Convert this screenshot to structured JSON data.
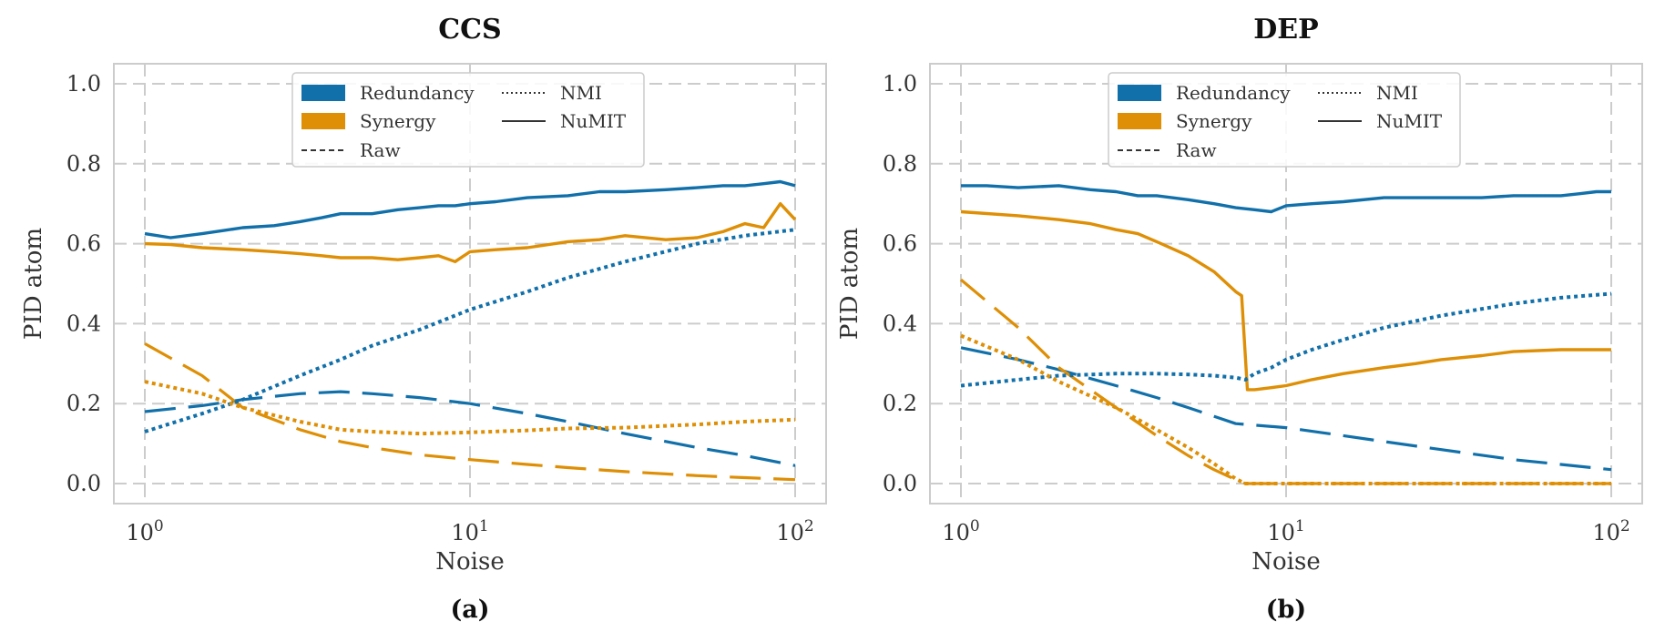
{
  "colors": {
    "redundancy": "#1170aa",
    "synergy": "#de8f05"
  },
  "legend": {
    "redundancy": "Redundancy",
    "synergy": "Synergy",
    "raw": "Raw",
    "nmi": "NMI",
    "numit": "NuMIT"
  },
  "chart_data": [
    {
      "type": "line",
      "title": "CCS",
      "caption": "(a)",
      "xlabel": "Noise",
      "ylabel": "PID atom",
      "xscale": "log",
      "xlim": [
        1,
        100
      ],
      "ylim": [
        -0.05,
        1.05
      ],
      "yticks": [
        "0.0",
        "0.2",
        "0.4",
        "0.6",
        "0.8",
        "1.0"
      ],
      "xticks": [
        {
          "base": "10",
          "exp": "0"
        },
        {
          "base": "10",
          "exp": "1"
        },
        {
          "base": "10",
          "exp": "2"
        }
      ],
      "legend_position": "top-center",
      "series": [
        {
          "name": "Redundancy NuMIT",
          "atom": "redundancy",
          "method": "numit",
          "x": [
            1,
            1.2,
            1.5,
            2,
            2.5,
            3,
            3.5,
            4,
            5,
            6,
            7,
            8,
            9,
            10,
            12,
            15,
            20,
            25,
            30,
            40,
            50,
            60,
            70,
            80,
            90,
            100
          ],
          "y": [
            0.625,
            0.615,
            0.625,
            0.64,
            0.645,
            0.655,
            0.665,
            0.675,
            0.675,
            0.685,
            0.69,
            0.695,
            0.695,
            0.7,
            0.705,
            0.715,
            0.72,
            0.73,
            0.73,
            0.735,
            0.74,
            0.745,
            0.745,
            0.75,
            0.755,
            0.745
          ]
        },
        {
          "name": "Synergy NuMIT",
          "atom": "synergy",
          "method": "numit",
          "x": [
            1,
            1.2,
            1.5,
            2,
            2.5,
            3,
            3.5,
            4,
            5,
            6,
            7,
            8,
            9,
            10,
            12,
            15,
            20,
            25,
            30,
            40,
            50,
            60,
            70,
            80,
            90,
            100
          ],
          "y": [
            0.6,
            0.598,
            0.59,
            0.585,
            0.58,
            0.575,
            0.57,
            0.565,
            0.565,
            0.56,
            0.565,
            0.57,
            0.555,
            0.58,
            0.585,
            0.59,
            0.605,
            0.61,
            0.62,
            0.61,
            0.615,
            0.63,
            0.65,
            0.64,
            0.7,
            0.66
          ]
        },
        {
          "name": "Redundancy Raw",
          "atom": "redundancy",
          "method": "raw",
          "x": [
            1,
            1.5,
            2,
            3,
            4,
            5,
            7,
            10,
            15,
            20,
            30,
            50,
            70,
            100
          ],
          "y": [
            0.18,
            0.195,
            0.21,
            0.225,
            0.23,
            0.225,
            0.215,
            0.2,
            0.175,
            0.155,
            0.125,
            0.09,
            0.07,
            0.045
          ]
        },
        {
          "name": "Synergy Raw",
          "atom": "synergy",
          "method": "raw",
          "x": [
            1,
            1.5,
            2,
            3,
            4,
            5,
            7,
            10,
            15,
            20,
            30,
            50,
            70,
            100
          ],
          "y": [
            0.35,
            0.27,
            0.19,
            0.135,
            0.105,
            0.09,
            0.072,
            0.06,
            0.048,
            0.04,
            0.03,
            0.02,
            0.015,
            0.01
          ]
        },
        {
          "name": "Redundancy NMI",
          "atom": "redundancy",
          "method": "nmi",
          "x": [
            1,
            1.5,
            2,
            3,
            4,
            5,
            7,
            10,
            15,
            20,
            30,
            50,
            70,
            100
          ],
          "y": [
            0.13,
            0.175,
            0.21,
            0.27,
            0.31,
            0.345,
            0.385,
            0.435,
            0.48,
            0.515,
            0.555,
            0.6,
            0.62,
            0.635
          ]
        },
        {
          "name": "Synergy NMI",
          "atom": "synergy",
          "method": "nmi",
          "x": [
            1,
            1.5,
            2,
            3,
            4,
            5,
            7,
            10,
            15,
            20,
            30,
            50,
            70,
            100
          ],
          "y": [
            0.255,
            0.225,
            0.19,
            0.155,
            0.135,
            0.13,
            0.125,
            0.128,
            0.133,
            0.138,
            0.14,
            0.148,
            0.155,
            0.16
          ]
        }
      ]
    },
    {
      "type": "line",
      "title": "DEP",
      "caption": "(b)",
      "xlabel": "Noise",
      "ylabel": "PID atom",
      "xscale": "log",
      "xlim": [
        1,
        100
      ],
      "ylim": [
        -0.05,
        1.05
      ],
      "yticks": [
        "0.0",
        "0.2",
        "0.4",
        "0.6",
        "0.8",
        "1.0"
      ],
      "xticks": [
        {
          "base": "10",
          "exp": "0"
        },
        {
          "base": "10",
          "exp": "1"
        },
        {
          "base": "10",
          "exp": "2"
        }
      ],
      "legend_position": "top-center",
      "series": [
        {
          "name": "Redundancy NuMIT",
          "atom": "redundancy",
          "method": "numit",
          "x": [
            1,
            1.2,
            1.5,
            2,
            2.5,
            3,
            3.5,
            4,
            5,
            6,
            7,
            8,
            9,
            10,
            12,
            15,
            20,
            25,
            30,
            40,
            50,
            60,
            70,
            80,
            90,
            100
          ],
          "y": [
            0.745,
            0.745,
            0.74,
            0.745,
            0.735,
            0.73,
            0.72,
            0.72,
            0.71,
            0.7,
            0.69,
            0.685,
            0.68,
            0.695,
            0.7,
            0.705,
            0.715,
            0.715,
            0.715,
            0.715,
            0.72,
            0.72,
            0.72,
            0.725,
            0.73,
            0.73
          ]
        },
        {
          "name": "Synergy NuMIT",
          "atom": "synergy",
          "method": "numit",
          "x": [
            1,
            1.5,
            2,
            2.5,
            3,
            3.5,
            4,
            5,
            6,
            7,
            7.3,
            7.6,
            8,
            9,
            10,
            12,
            15,
            20,
            25,
            30,
            40,
            50,
            70,
            100
          ],
          "y": [
            0.68,
            0.67,
            0.66,
            0.65,
            0.635,
            0.625,
            0.605,
            0.57,
            0.53,
            0.48,
            0.47,
            0.235,
            0.235,
            0.24,
            0.245,
            0.26,
            0.275,
            0.29,
            0.3,
            0.31,
            0.32,
            0.33,
            0.335,
            0.335
          ]
        },
        {
          "name": "Redundancy Raw",
          "atom": "redundancy",
          "method": "raw",
          "x": [
            1,
            1.5,
            2,
            3,
            4,
            5,
            7,
            10,
            15,
            20,
            30,
            50,
            70,
            100
          ],
          "y": [
            0.34,
            0.31,
            0.285,
            0.245,
            0.215,
            0.19,
            0.15,
            0.14,
            0.12,
            0.105,
            0.085,
            0.06,
            0.048,
            0.035
          ]
        },
        {
          "name": "Synergy Raw",
          "atom": "synergy",
          "method": "raw",
          "x": [
            1,
            1.5,
            2,
            3,
            4,
            5,
            6,
            7,
            7.5,
            10,
            20,
            50,
            100
          ],
          "y": [
            0.51,
            0.39,
            0.29,
            0.19,
            0.12,
            0.07,
            0.035,
            0.01,
            0.0,
            0.0,
            0.0,
            0.0,
            0.0
          ]
        },
        {
          "name": "Redundancy NMI",
          "atom": "redundancy",
          "method": "nmi",
          "x": [
            1,
            1.5,
            2,
            3,
            4,
            5,
            6,
            7,
            7.5,
            8,
            9,
            10,
            12,
            15,
            20,
            30,
            50,
            70,
            100
          ],
          "y": [
            0.245,
            0.26,
            0.27,
            0.275,
            0.275,
            0.273,
            0.27,
            0.265,
            0.26,
            0.275,
            0.29,
            0.31,
            0.335,
            0.36,
            0.39,
            0.42,
            0.45,
            0.465,
            0.475
          ]
        },
        {
          "name": "Synergy NMI",
          "atom": "synergy",
          "method": "nmi",
          "x": [
            1,
            1.5,
            2,
            3,
            4,
            5,
            6,
            7,
            7.5,
            10,
            20,
            50,
            100
          ],
          "y": [
            0.37,
            0.31,
            0.255,
            0.19,
            0.135,
            0.09,
            0.05,
            0.012,
            0.0,
            0.0,
            0.0,
            0.0,
            0.0
          ]
        }
      ]
    }
  ]
}
